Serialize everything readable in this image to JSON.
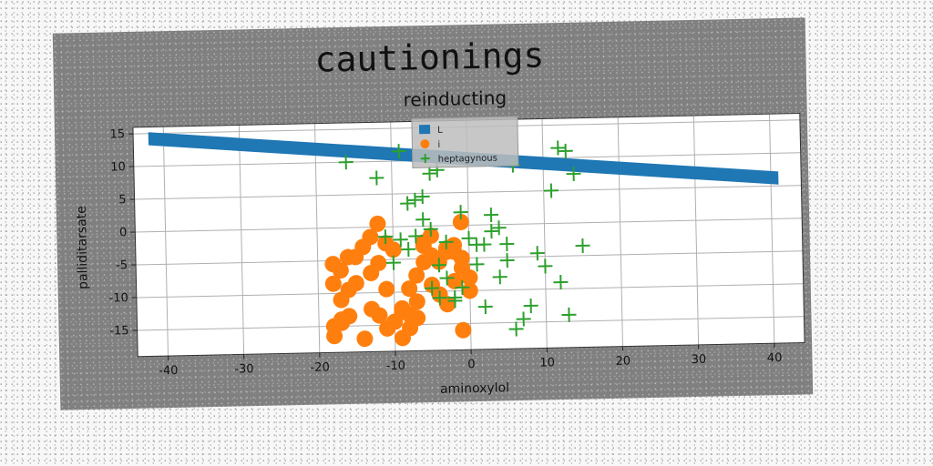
{
  "chart_data": {
    "type": "scatter",
    "title": "cautionings",
    "subtitle": "reinducting",
    "xlabel": "aminoxylol",
    "ylabel": "palliditarsate",
    "xlim": [
      -44,
      44
    ],
    "ylim": [
      -19,
      16
    ],
    "xticks": [
      -40,
      -30,
      -20,
      -10,
      0,
      10,
      20,
      30,
      40
    ],
    "yticks": [
      -15,
      -10,
      -5,
      0,
      5,
      10,
      15
    ],
    "grid": true,
    "legend_position": "top-center",
    "series": [
      {
        "name": "L",
        "kind": "band",
        "color": "#1f77b4",
        "x": [
          -42,
          41
        ],
        "y_upper": [
          15.2,
          7.2
        ],
        "y_lower": [
          13.2,
          5.2
        ]
      },
      {
        "name": "i",
        "kind": "scatter",
        "marker": "circle",
        "color": "#ff7f0e",
        "x": [
          -18,
          -17,
          -16,
          -18,
          -17,
          -15,
          -14,
          -13,
          -12,
          -11,
          -10,
          -12,
          -13,
          -15,
          -16,
          -17,
          -18,
          -11,
          -9,
          -8,
          -7,
          -6,
          -5,
          -4,
          -3,
          -2,
          -1,
          -6,
          -7,
          -8,
          -9,
          -5,
          -4,
          -3,
          -2,
          -1,
          0,
          -11,
          -12,
          -10,
          -13,
          -16,
          -17,
          -18,
          -14,
          -9,
          -8,
          -7,
          -6,
          -5,
          -3,
          -2,
          -1,
          0,
          -1
        ],
        "y": [
          -5.5,
          -6.5,
          -4.5,
          -8.5,
          -11,
          -4.5,
          -3,
          -1.5,
          0.5,
          -2.5,
          -3.5,
          -5.5,
          -7,
          -8.5,
          -9.5,
          -14.5,
          -15,
          -9.5,
          -12.5,
          -13.5,
          -11.5,
          -3,
          -4.5,
          -5.5,
          -4,
          -3,
          -5,
          -5.5,
          -7.5,
          -9.5,
          -13,
          -9,
          -10.5,
          -12,
          -8.5,
          -6.5,
          -8,
          -15.5,
          -13.5,
          -14.5,
          -12.5,
          -13.5,
          -14,
          -16.5,
          -17,
          -17,
          -15.5,
          -14,
          -2.5,
          -1.5,
          -3.5,
          -4,
          0.5,
          -10,
          -16
        ],
        "size": 9
      },
      {
        "name": "heptagynous",
        "kind": "scatter",
        "marker": "plus",
        "color": "#2ca02c",
        "x": [
          -16,
          -12,
          -9,
          -8,
          -7,
          -6,
          -5,
          -4,
          -5,
          -6,
          -7,
          -8,
          -9,
          -10,
          -11,
          -4,
          -3,
          -2,
          -1,
          0,
          1,
          2,
          3,
          4,
          5,
          6,
          7,
          8,
          9,
          10,
          11,
          12,
          13,
          14,
          15,
          -3,
          -2,
          -1,
          1,
          2,
          3,
          4,
          5,
          -4,
          -5,
          12,
          13,
          6
        ],
        "y": [
          10,
          7.5,
          11.5,
          3.5,
          4,
          4.5,
          8,
          8.5,
          -0.5,
          1,
          -1.5,
          -3.5,
          -2,
          -5.5,
          -1.5,
          -6,
          -8,
          -11,
          -9.5,
          -2,
          -6,
          -3,
          -1,
          -8,
          -5.5,
          -16,
          -14.5,
          -12.5,
          -4.5,
          -6.5,
          5,
          -9,
          -14,
          7.5,
          -3.5,
          -2.5,
          -11.5,
          2,
          -3,
          -12.5,
          1.5,
          -0.5,
          -3,
          -11,
          -9.5,
          11.5,
          11,
          9
        ],
        "size": 8
      }
    ]
  }
}
